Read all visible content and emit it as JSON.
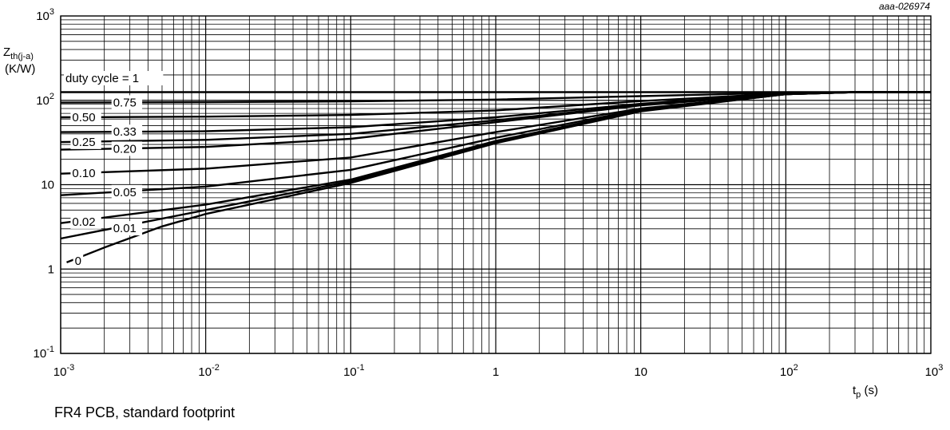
{
  "chart_data": {
    "type": "line",
    "figure_code": "aaa-026974",
    "x_scale": "log",
    "y_scale": "log",
    "xlim": [
      0.001,
      1000
    ],
    "ylim": [
      0.1,
      1000
    ],
    "grid": true,
    "ylabel": {
      "symbol": "Z",
      "subscript": "th(j-a)",
      "unit": "(K/W)"
    },
    "xlabel": {
      "symbol": "t",
      "subscript": "p",
      "unit": "(s)"
    },
    "x_ticks": [
      {
        "value": 0.001,
        "base": "10",
        "exp": "-3"
      },
      {
        "value": 0.01,
        "base": "10",
        "exp": "-2"
      },
      {
        "value": 0.1,
        "base": "10",
        "exp": "-1"
      },
      {
        "value": 1,
        "base": "1",
        "exp": ""
      },
      {
        "value": 10,
        "base": "10",
        "exp": ""
      },
      {
        "value": 100,
        "base": "10",
        "exp": "2"
      },
      {
        "value": 1000,
        "base": "10",
        "exp": "3"
      }
    ],
    "y_ticks": [
      {
        "value": 1000,
        "base": "10",
        "exp": "3"
      },
      {
        "value": 100,
        "base": "10",
        "exp": "2"
      },
      {
        "value": 10,
        "base": "10",
        "exp": ""
      },
      {
        "value": 1,
        "base": "1",
        "exp": ""
      },
      {
        "value": 0.1,
        "base": "10",
        "exp": "-1"
      }
    ],
    "series": [
      {
        "name": "duty cycle = 1",
        "x": [
          0.001,
          0.01,
          0.1,
          1,
          10,
          100,
          300,
          1000
        ],
        "y": [
          125,
          125,
          125,
          125,
          125,
          125,
          125,
          125
        ]
      },
      {
        "name": "0.75",
        "x": [
          0.001,
          0.01,
          0.1,
          1,
          10,
          100,
          300,
          1000
        ],
        "y": [
          94,
          95,
          97,
          102,
          112,
          123,
          125,
          125
        ]
      },
      {
        "name": "0.50",
        "x": [
          0.001,
          0.01,
          0.1,
          1,
          10,
          100,
          300,
          1000
        ],
        "y": [
          63,
          64,
          67,
          76,
          98,
          121,
          125,
          125
        ]
      },
      {
        "name": "0.33",
        "x": [
          0.001,
          0.01,
          0.1,
          1,
          10,
          100,
          300,
          1000
        ],
        "y": [
          42,
          43,
          48,
          63,
          91,
          120,
          125,
          125
        ]
      },
      {
        "name": "0.25",
        "x": [
          0.001,
          0.01,
          0.1,
          1,
          10,
          100,
          300,
          1000
        ],
        "y": [
          32,
          34,
          40,
          58,
          88,
          119,
          125,
          125
        ]
      },
      {
        "name": "0.20",
        "x": [
          0.001,
          0.01,
          0.1,
          1,
          10,
          100,
          300,
          1000
        ],
        "y": [
          26,
          28,
          35,
          55,
          87,
          119,
          125,
          125
        ]
      },
      {
        "name": "0.10",
        "x": [
          0.001,
          0.01,
          0.1,
          1,
          10,
          100,
          300,
          1000
        ],
        "y": [
          13.5,
          15.5,
          21,
          42,
          80,
          118,
          125,
          125
        ]
      },
      {
        "name": "0.05",
        "x": [
          0.001,
          0.01,
          0.1,
          1,
          10,
          100,
          300,
          1000
        ],
        "y": [
          7.5,
          9.5,
          15,
          36,
          78,
          118,
          125,
          125
        ]
      },
      {
        "name": "0.02",
        "x": [
          0.001,
          0.01,
          0.1,
          1,
          10,
          100,
          300,
          1000
        ],
        "y": [
          3.5,
          5.8,
          11.5,
          33,
          76,
          118,
          125,
          125
        ]
      },
      {
        "name": "0.01",
        "x": [
          0.001,
          0.01,
          0.1,
          1,
          10,
          100,
          300,
          1000
        ],
        "y": [
          2.3,
          5,
          11,
          32,
          75,
          118,
          125,
          125
        ]
      },
      {
        "name": "0",
        "x": [
          0.0011,
          0.002,
          0.005,
          0.01,
          0.1,
          1,
          10,
          100,
          300,
          1000
        ],
        "y": [
          1.2,
          1.8,
          3.2,
          4.5,
          10.5,
          31,
          74,
          118,
          125,
          125
        ]
      }
    ]
  },
  "caption": "FR4 PCB, standard footprint"
}
